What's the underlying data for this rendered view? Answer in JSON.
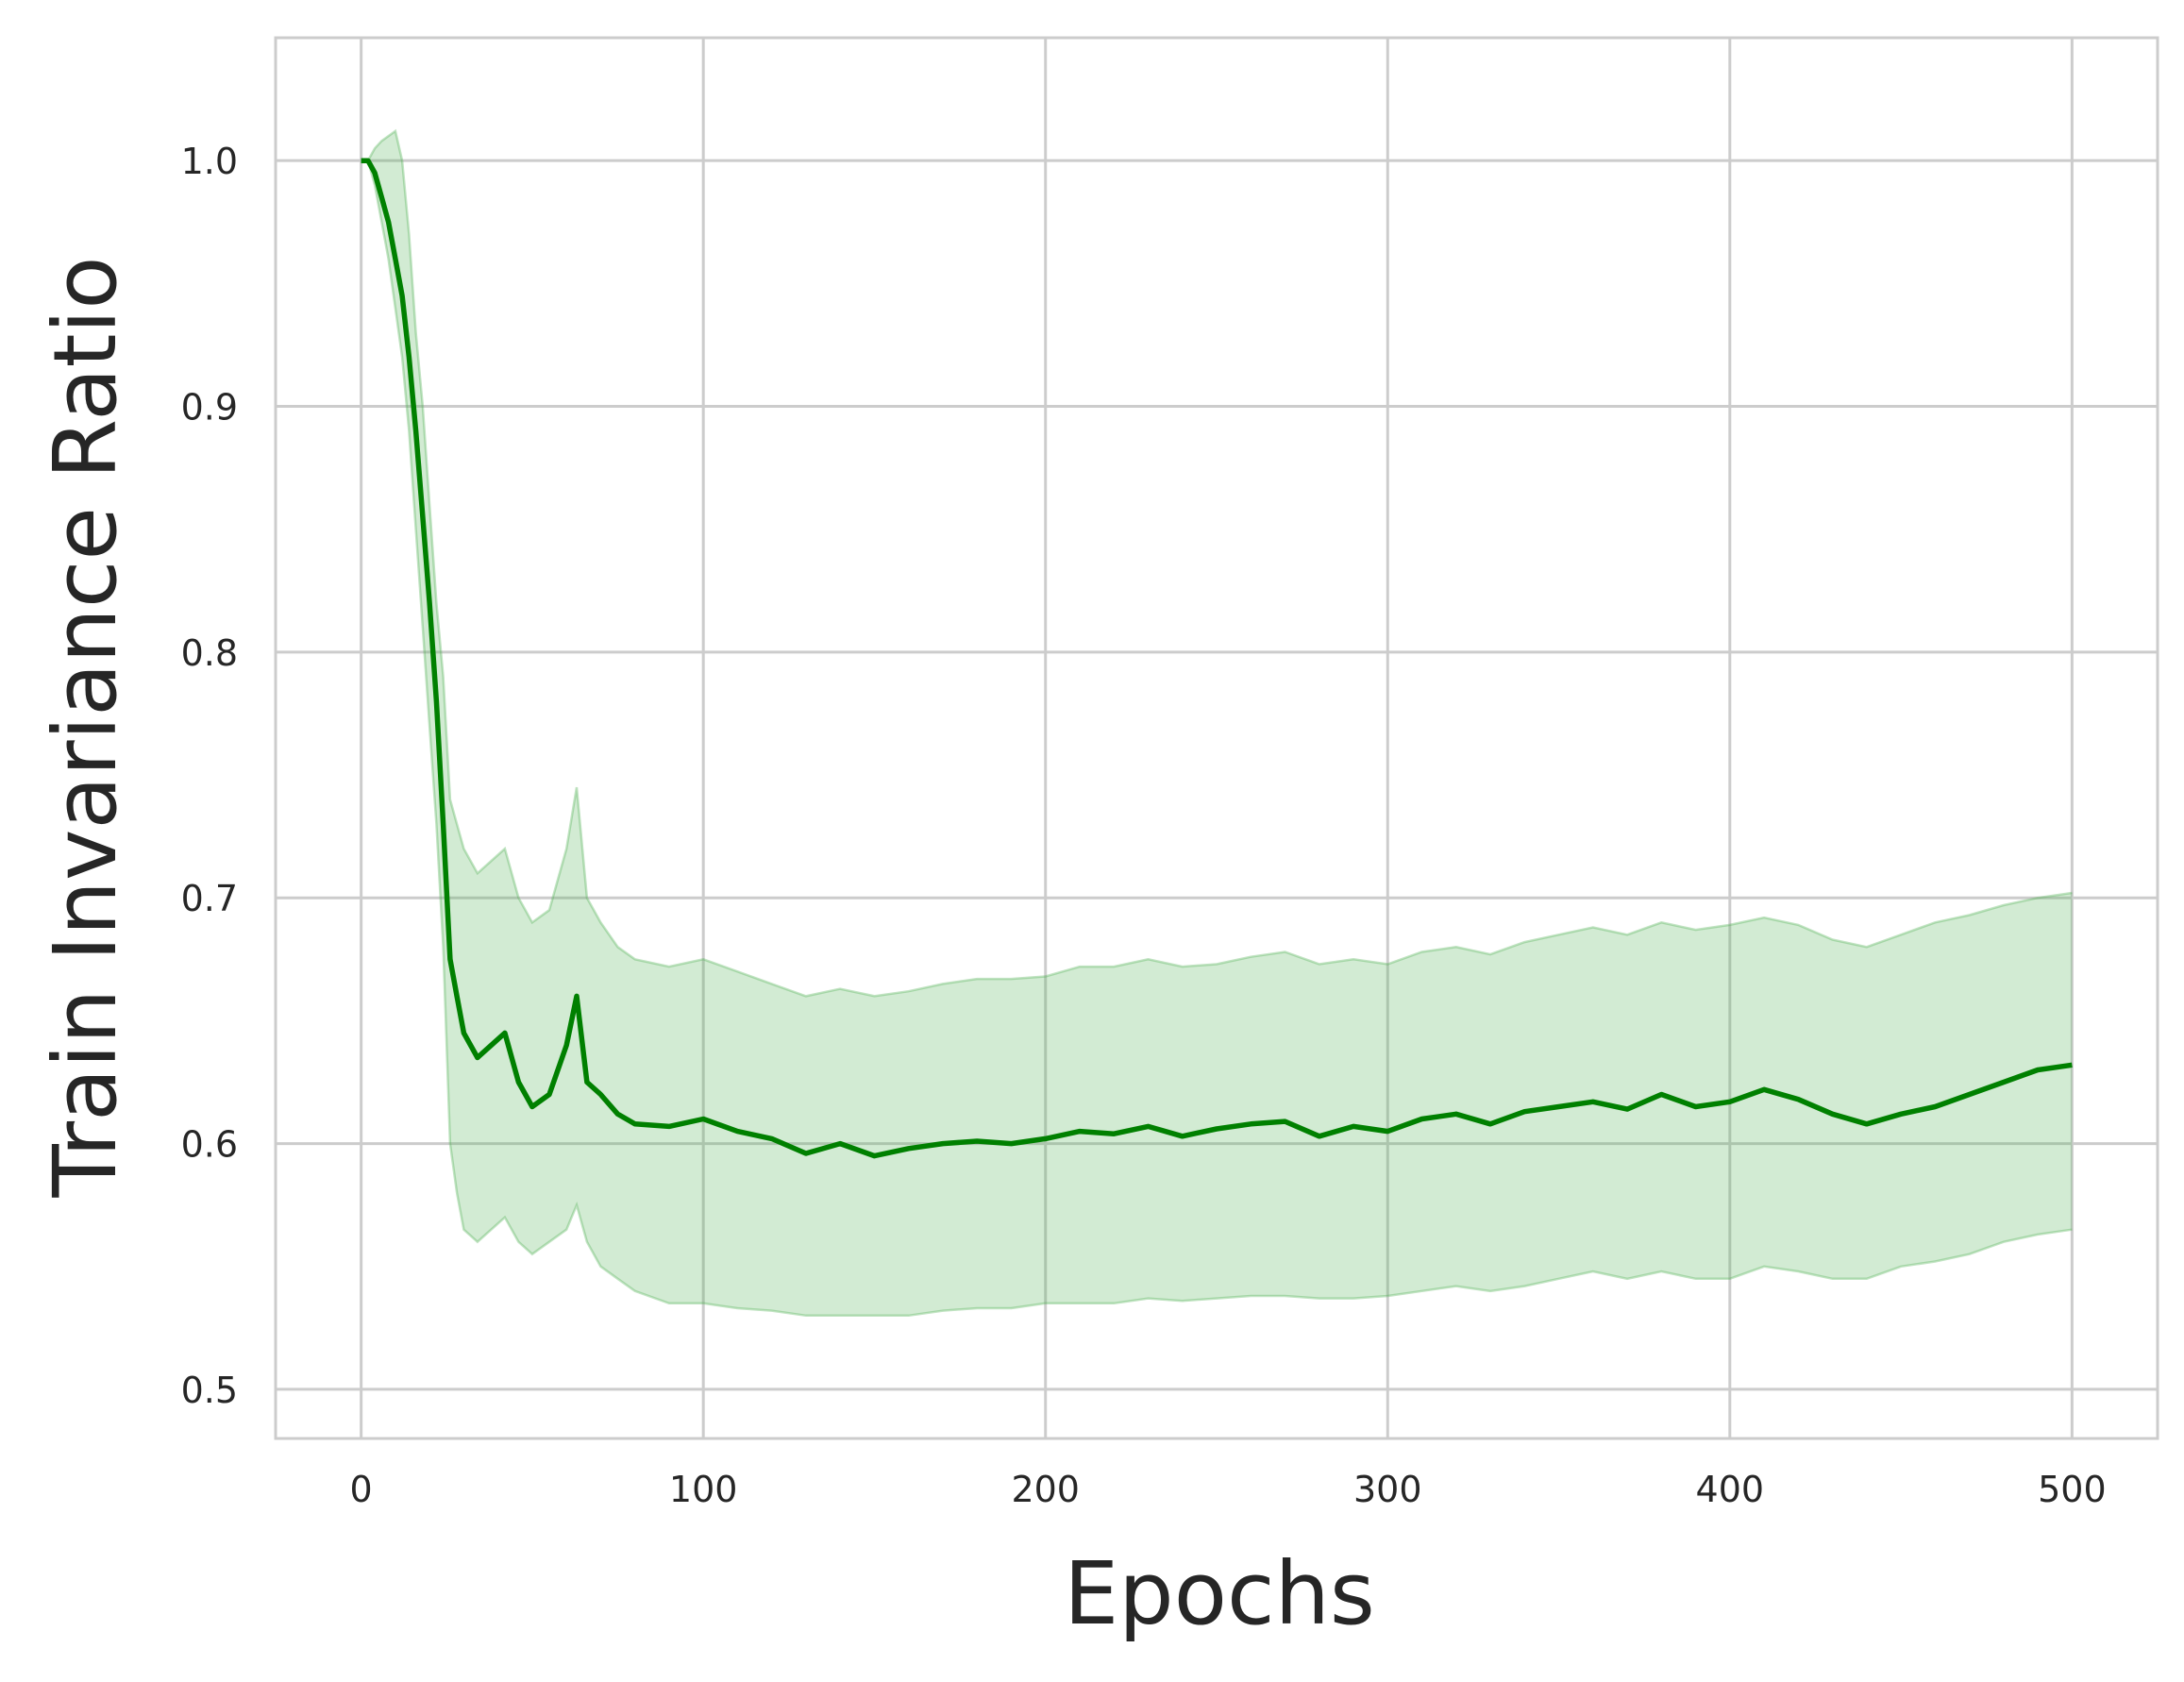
{
  "chart_data": {
    "type": "line",
    "title": "",
    "xlabel": "Epochs",
    "ylabel": "Train Invariance Ratio",
    "xlim": [
      -25,
      525
    ],
    "ylim": [
      0.48,
      1.05
    ],
    "xticks": [
      0,
      100,
      200,
      300,
      400,
      500
    ],
    "xtick_labels": [
      "0",
      "100",
      "200",
      "300",
      "400",
      "500"
    ],
    "yticks": [
      0.5,
      0.6,
      0.7,
      0.8,
      0.9,
      1.0
    ],
    "ytick_labels": [
      "0.5",
      "0.6",
      "0.7",
      "0.8",
      "0.9",
      "1.0"
    ],
    "grid": true,
    "legend": "none",
    "colors": {
      "line": "#008000",
      "band": "#4caf50",
      "grid": "#cccccc",
      "spine": "#cccccc",
      "text": "#262626"
    },
    "series": [
      {
        "x": [
          0,
          2,
          4,
          6,
          8,
          10,
          12,
          14,
          16,
          18,
          20,
          22,
          24,
          26,
          28,
          30,
          34,
          38,
          42,
          46,
          50,
          55,
          60,
          63,
          66,
          70,
          75,
          80,
          90,
          100,
          110,
          120,
          130,
          140,
          150,
          160,
          170,
          180,
          190,
          200,
          210,
          220,
          230,
          240,
          250,
          260,
          270,
          280,
          290,
          300,
          310,
          320,
          330,
          340,
          350,
          360,
          370,
          380,
          390,
          400,
          410,
          420,
          430,
          440,
          450,
          460,
          470,
          480,
          490,
          500
        ],
        "values": [
          1.0,
          1.0,
          0.995,
          0.985,
          0.975,
          0.96,
          0.945,
          0.92,
          0.89,
          0.855,
          0.82,
          0.78,
          0.73,
          0.675,
          0.66,
          0.645,
          0.635,
          0.64,
          0.645,
          0.625,
          0.615,
          0.62,
          0.64,
          0.66,
          0.625,
          0.62,
          0.612,
          0.608,
          0.607,
          0.61,
          0.605,
          0.602,
          0.596,
          0.6,
          0.595,
          0.598,
          0.6,
          0.601,
          0.6,
          0.602,
          0.605,
          0.604,
          0.607,
          0.603,
          0.606,
          0.608,
          0.609,
          0.603,
          0.607,
          0.605,
          0.61,
          0.612,
          0.608,
          0.613,
          0.615,
          0.617,
          0.614,
          0.62,
          0.615,
          0.617,
          0.622,
          0.618,
          0.612,
          0.608,
          0.612,
          0.615,
          0.62,
          0.625,
          0.63,
          0.632
        ],
        "band_lower": [
          1.0,
          1.0,
          0.99,
          0.975,
          0.96,
          0.94,
          0.92,
          0.89,
          0.85,
          0.81,
          0.77,
          0.73,
          0.68,
          0.6,
          0.58,
          0.565,
          0.56,
          0.565,
          0.57,
          0.56,
          0.555,
          0.56,
          0.565,
          0.575,
          0.56,
          0.55,
          0.545,
          0.54,
          0.535,
          0.535,
          0.533,
          0.532,
          0.53,
          0.53,
          0.53,
          0.53,
          0.532,
          0.533,
          0.533,
          0.535,
          0.535,
          0.535,
          0.537,
          0.536,
          0.537,
          0.538,
          0.538,
          0.537,
          0.537,
          0.538,
          0.54,
          0.542,
          0.54,
          0.542,
          0.545,
          0.548,
          0.545,
          0.548,
          0.545,
          0.545,
          0.55,
          0.548,
          0.545,
          0.545,
          0.55,
          0.552,
          0.555,
          0.56,
          0.563,
          0.565
        ],
        "band_upper": [
          1.0,
          1.0,
          1.005,
          1.008,
          1.01,
          1.012,
          1.0,
          0.97,
          0.93,
          0.9,
          0.86,
          0.82,
          0.79,
          0.74,
          0.73,
          0.72,
          0.71,
          0.715,
          0.72,
          0.7,
          0.69,
          0.695,
          0.72,
          0.745,
          0.7,
          0.69,
          0.68,
          0.675,
          0.672,
          0.675,
          0.67,
          0.665,
          0.66,
          0.663,
          0.66,
          0.662,
          0.665,
          0.667,
          0.667,
          0.668,
          0.672,
          0.672,
          0.675,
          0.672,
          0.673,
          0.676,
          0.678,
          0.673,
          0.675,
          0.673,
          0.678,
          0.68,
          0.677,
          0.682,
          0.685,
          0.688,
          0.685,
          0.69,
          0.687,
          0.689,
          0.692,
          0.689,
          0.683,
          0.68,
          0.685,
          0.69,
          0.693,
          0.697,
          0.7,
          0.702
        ]
      }
    ]
  }
}
